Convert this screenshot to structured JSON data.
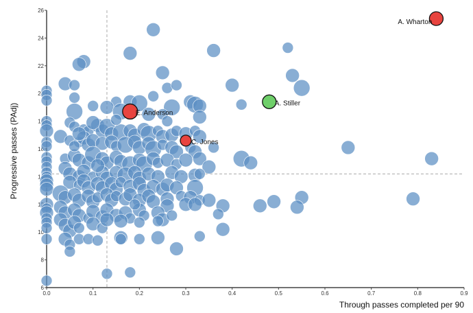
{
  "chart_data": {
    "type": "scatter",
    "title": "",
    "xlabel": "Through passes completed per 90",
    "ylabel": "Progressive passes (PAdj)",
    "xlim": [
      0,
      0.9
    ],
    "ylim": [
      6,
      26
    ],
    "x_ticks": [
      "0.0",
      "0.1",
      "0.2",
      "0.3",
      "0.4",
      "0.5",
      "0.6",
      "0.7",
      "0.8",
      "0.9"
    ],
    "y_ticks": [
      "6",
      "8",
      "10",
      "12",
      "14",
      "16",
      "18",
      "20",
      "22",
      "24",
      "26"
    ],
    "grid": false,
    "reference_lines": {
      "x": 0.13,
      "y": 14.2
    },
    "colors": {
      "base": "#5b8fc4",
      "highlight_red": "#e8443f",
      "highlight_green": "#6fcf6a",
      "axis": "#444444",
      "reference": "#aaaaaa"
    },
    "highlighted": [
      {
        "name": "A. Wharton",
        "x": 0.84,
        "y": 25.4,
        "color": "red"
      },
      {
        "name": "A. Stiller",
        "x": 0.48,
        "y": 19.4,
        "color": "green"
      },
      {
        "name": "E. Anderson",
        "x": 0.18,
        "y": 18.7,
        "color": "red"
      },
      {
        "name": "C. Jones",
        "x": 0.3,
        "y": 16.6,
        "color": "red"
      }
    ],
    "points": [
      [
        0.23,
        24.6,
        3
      ],
      [
        0.36,
        23.1,
        3
      ],
      [
        0.52,
        23.3,
        2
      ],
      [
        0.18,
        22.9,
        3
      ],
      [
        0.08,
        22.3,
        3
      ],
      [
        0.07,
        22.1,
        3
      ],
      [
        0.25,
        21.5,
        3
      ],
      [
        0.04,
        20.7,
        3
      ],
      [
        0.06,
        20.6,
        2
      ],
      [
        0.0,
        20.2,
        2
      ],
      [
        0.0,
        19.9,
        2
      ],
      [
        0.06,
        19.7,
        2
      ],
      [
        0.0,
        19.5,
        2
      ],
      [
        0.53,
        21.3,
        3
      ],
      [
        0.55,
        20.4,
        4
      ],
      [
        0.4,
        20.6,
        3
      ],
      [
        0.26,
        20.4,
        2
      ],
      [
        0.28,
        20.6,
        2
      ],
      [
        0.23,
        19.8,
        2
      ],
      [
        0.31,
        19.4,
        3
      ],
      [
        0.32,
        19.2,
        4
      ],
      [
        0.27,
        19.0,
        4
      ],
      [
        0.33,
        19.1,
        3
      ],
      [
        0.42,
        19.2,
        2
      ],
      [
        0.18,
        19.4,
        3
      ],
      [
        0.2,
        19.3,
        4
      ],
      [
        0.15,
        19.4,
        2
      ],
      [
        0.13,
        19.0,
        3
      ],
      [
        0.1,
        19.1,
        2
      ],
      [
        0.06,
        18.7,
        4
      ],
      [
        0.16,
        18.7,
        4
      ],
      [
        0.22,
        18.5,
        3
      ],
      [
        0.25,
        18.5,
        2
      ],
      [
        0.33,
        18.3,
        3
      ],
      [
        0.0,
        18.0,
        2
      ],
      [
        0.0,
        17.7,
        2
      ],
      [
        0.0,
        17.3,
        3
      ],
      [
        0.0,
        16.5,
        2
      ],
      [
        0.0,
        16.2,
        2
      ],
      [
        0.05,
        17.9,
        2
      ],
      [
        0.06,
        17.6,
        2
      ],
      [
        0.08,
        17.4,
        2
      ],
      [
        0.09,
        17.3,
        2
      ],
      [
        0.11,
        17.7,
        3
      ],
      [
        0.12,
        17.3,
        3
      ],
      [
        0.13,
        17.6,
        4
      ],
      [
        0.14,
        17.1,
        3
      ],
      [
        0.16,
        17.2,
        4
      ],
      [
        0.18,
        17.3,
        3
      ],
      [
        0.19,
        17.0,
        3
      ],
      [
        0.21,
        17.4,
        3
      ],
      [
        0.22,
        17.1,
        4
      ],
      [
        0.24,
        17.3,
        2
      ],
      [
        0.25,
        16.9,
        3
      ],
      [
        0.27,
        17.0,
        3
      ],
      [
        0.28,
        17.3,
        2
      ],
      [
        0.3,
        17.1,
        3
      ],
      [
        0.32,
        17.3,
        2
      ],
      [
        0.33,
        16.9,
        3
      ],
      [
        0.26,
        18.0,
        2
      ],
      [
        0.03,
        16.9,
        3
      ],
      [
        0.05,
        16.6,
        2
      ],
      [
        0.07,
        16.5,
        2
      ],
      [
        0.08,
        16.8,
        3
      ],
      [
        0.09,
        16.3,
        3
      ],
      [
        0.1,
        16.6,
        3
      ],
      [
        0.12,
        16.4,
        3
      ],
      [
        0.14,
        16.5,
        3
      ],
      [
        0.15,
        16.2,
        2
      ],
      [
        0.17,
        16.3,
        4
      ],
      [
        0.19,
        16.5,
        3
      ],
      [
        0.2,
        16.1,
        3
      ],
      [
        0.22,
        16.4,
        3
      ],
      [
        0.23,
        16.0,
        4
      ],
      [
        0.25,
        16.3,
        2
      ],
      [
        0.27,
        16.1,
        3
      ],
      [
        0.28,
        15.8,
        3
      ],
      [
        0.31,
        16.1,
        2
      ],
      [
        0.32,
        15.8,
        3
      ],
      [
        0.36,
        16.1,
        2
      ],
      [
        0.65,
        16.1,
        3
      ],
      [
        0.0,
        15.4,
        2
      ],
      [
        0.0,
        15.1,
        2
      ],
      [
        0.04,
        15.3,
        2
      ],
      [
        0.06,
        15.5,
        3
      ],
      [
        0.07,
        15.2,
        3
      ],
      [
        0.09,
        15.0,
        3
      ],
      [
        0.1,
        15.6,
        4
      ],
      [
        0.12,
        15.3,
        3
      ],
      [
        0.13,
        15.0,
        3
      ],
      [
        0.15,
        15.4,
        3
      ],
      [
        0.16,
        15.1,
        3
      ],
      [
        0.18,
        14.9,
        4
      ],
      [
        0.2,
        15.2,
        3
      ],
      [
        0.21,
        14.9,
        4
      ],
      [
        0.23,
        15.3,
        3
      ],
      [
        0.24,
        15.0,
        2
      ],
      [
        0.26,
        15.2,
        3
      ],
      [
        0.28,
        14.9,
        2
      ],
      [
        0.3,
        15.2,
        3
      ],
      [
        0.33,
        15.3,
        3
      ],
      [
        0.35,
        14.7,
        3
      ],
      [
        0.42,
        15.3,
        4
      ],
      [
        0.44,
        15.0,
        3
      ],
      [
        0.83,
        15.3,
        3
      ],
      [
        0.0,
        14.7,
        2
      ],
      [
        0.0,
        14.3,
        2
      ],
      [
        0.0,
        14.0,
        2
      ],
      [
        0.0,
        13.7,
        3
      ],
      [
        0.0,
        13.4,
        3
      ],
      [
        0.0,
        13.1,
        3
      ],
      [
        0.04,
        14.6,
        3
      ],
      [
        0.05,
        14.2,
        3
      ],
      [
        0.07,
        14.0,
        3
      ],
      [
        0.08,
        14.4,
        3
      ],
      [
        0.1,
        14.0,
        2
      ],
      [
        0.12,
        14.3,
        3
      ],
      [
        0.13,
        13.9,
        3
      ],
      [
        0.15,
        14.3,
        3
      ],
      [
        0.17,
        14.1,
        4
      ],
      [
        0.19,
        14.3,
        3
      ],
      [
        0.2,
        13.9,
        3
      ],
      [
        0.22,
        14.2,
        3
      ],
      [
        0.24,
        14.0,
        3
      ],
      [
        0.27,
        14.3,
        3
      ],
      [
        0.29,
        14.0,
        3
      ],
      [
        0.32,
        14.1,
        3
      ],
      [
        0.33,
        14.2,
        2
      ],
      [
        0.05,
        13.6,
        3
      ],
      [
        0.07,
        13.4,
        2
      ],
      [
        0.08,
        13.7,
        3
      ],
      [
        0.09,
        13.2,
        3
      ],
      [
        0.11,
        13.5,
        3
      ],
      [
        0.12,
        13.2,
        3
      ],
      [
        0.14,
        13.5,
        3
      ],
      [
        0.15,
        13.1,
        3
      ],
      [
        0.16,
        13.6,
        2
      ],
      [
        0.18,
        13.3,
        3
      ],
      [
        0.2,
        13.5,
        3
      ],
      [
        0.21,
        13.0,
        3
      ],
      [
        0.23,
        13.3,
        3
      ],
      [
        0.25,
        13.1,
        3
      ],
      [
        0.26,
        13.4,
        3
      ],
      [
        0.28,
        13.2,
        3
      ],
      [
        0.32,
        13.2,
        4
      ],
      [
        0.03,
        12.8,
        4
      ],
      [
        0.04,
        12.5,
        3
      ],
      [
        0.06,
        12.7,
        3
      ],
      [
        0.07,
        12.3,
        3
      ],
      [
        0.09,
        12.6,
        3
      ],
      [
        0.1,
        12.2,
        3
      ],
      [
        0.11,
        12.5,
        2
      ],
      [
        0.13,
        12.7,
        3
      ],
      [
        0.14,
        12.3,
        3
      ],
      [
        0.15,
        12.6,
        2
      ],
      [
        0.17,
        12.4,
        3
      ],
      [
        0.18,
        12.7,
        3
      ],
      [
        0.2,
        12.3,
        3
      ],
      [
        0.22,
        12.6,
        3
      ],
      [
        0.23,
        12.2,
        3
      ],
      [
        0.26,
        12.4,
        3
      ],
      [
        0.29,
        12.6,
        2
      ],
      [
        0.31,
        12.5,
        3
      ],
      [
        0.33,
        12.3,
        2
      ],
      [
        0.35,
        12.3,
        3
      ],
      [
        0.38,
        11.9,
        3
      ],
      [
        0.46,
        11.9,
        3
      ],
      [
        0.49,
        12.2,
        3
      ],
      [
        0.55,
        12.5,
        3
      ],
      [
        0.54,
        11.8,
        3
      ],
      [
        0.79,
        12.4,
        3
      ],
      [
        0.26,
        11.9,
        3
      ],
      [
        0.0,
        12.0,
        3
      ],
      [
        0.0,
        11.7,
        2
      ],
      [
        0.0,
        11.4,
        3
      ],
      [
        0.0,
        11.0,
        2
      ],
      [
        0.0,
        10.7,
        2
      ],
      [
        0.0,
        10.3,
        2
      ],
      [
        0.03,
        11.8,
        3
      ],
      [
        0.04,
        11.4,
        3
      ],
      [
        0.06,
        11.6,
        3
      ],
      [
        0.07,
        11.2,
        3
      ],
      [
        0.09,
        11.0,
        2
      ],
      [
        0.1,
        11.5,
        3
      ],
      [
        0.12,
        11.1,
        3
      ],
      [
        0.13,
        11.6,
        3
      ],
      [
        0.15,
        11.2,
        3
      ],
      [
        0.17,
        11.4,
        3
      ],
      [
        0.18,
        11.0,
        2
      ],
      [
        0.2,
        11.6,
        3
      ],
      [
        0.21,
        11.2,
        2
      ],
      [
        0.24,
        11.4,
        3
      ],
      [
        0.3,
        12.0,
        3
      ],
      [
        0.32,
        12.0,
        3
      ],
      [
        0.37,
        11.3,
        2
      ],
      [
        0.03,
        10.9,
        3
      ],
      [
        0.04,
        10.5,
        3
      ],
      [
        0.05,
        10.1,
        3
      ],
      [
        0.06,
        10.7,
        3
      ],
      [
        0.07,
        10.3,
        2
      ],
      [
        0.1,
        10.6,
        3
      ],
      [
        0.12,
        10.3,
        2
      ],
      [
        0.13,
        10.9,
        3
      ],
      [
        0.16,
        10.8,
        3
      ],
      [
        0.2,
        10.7,
        2
      ],
      [
        0.25,
        10.9,
        3
      ],
      [
        0.24,
        10.8,
        2
      ],
      [
        0.38,
        10.2,
        3
      ],
      [
        0.0,
        9.5,
        2
      ],
      [
        0.04,
        9.5,
        3
      ],
      [
        0.05,
        9.1,
        2
      ],
      [
        0.05,
        8.6,
        2
      ],
      [
        0.07,
        9.5,
        2
      ],
      [
        0.09,
        9.5,
        2
      ],
      [
        0.11,
        9.4,
        2
      ],
      [
        0.16,
        9.6,
        3
      ],
      [
        0.16,
        9.5,
        2
      ],
      [
        0.2,
        9.5,
        2
      ],
      [
        0.24,
        9.6,
        3
      ],
      [
        0.28,
        8.8,
        3
      ],
      [
        0.33,
        9.7,
        2
      ],
      [
        0.13,
        7.0,
        2
      ],
      [
        0.18,
        7.1,
        2
      ],
      [
        0.0,
        6.5,
        2
      ],
      [
        0.07,
        17.1,
        3
      ],
      [
        0.06,
        16.2,
        2
      ],
      [
        0.1,
        17.9,
        3
      ],
      [
        0.15,
        18.1,
        2
      ],
      [
        0.11,
        14.8,
        3
      ],
      [
        0.19,
        12.0,
        2
      ],
      [
        0.27,
        11.2,
        2
      ]
    ]
  }
}
